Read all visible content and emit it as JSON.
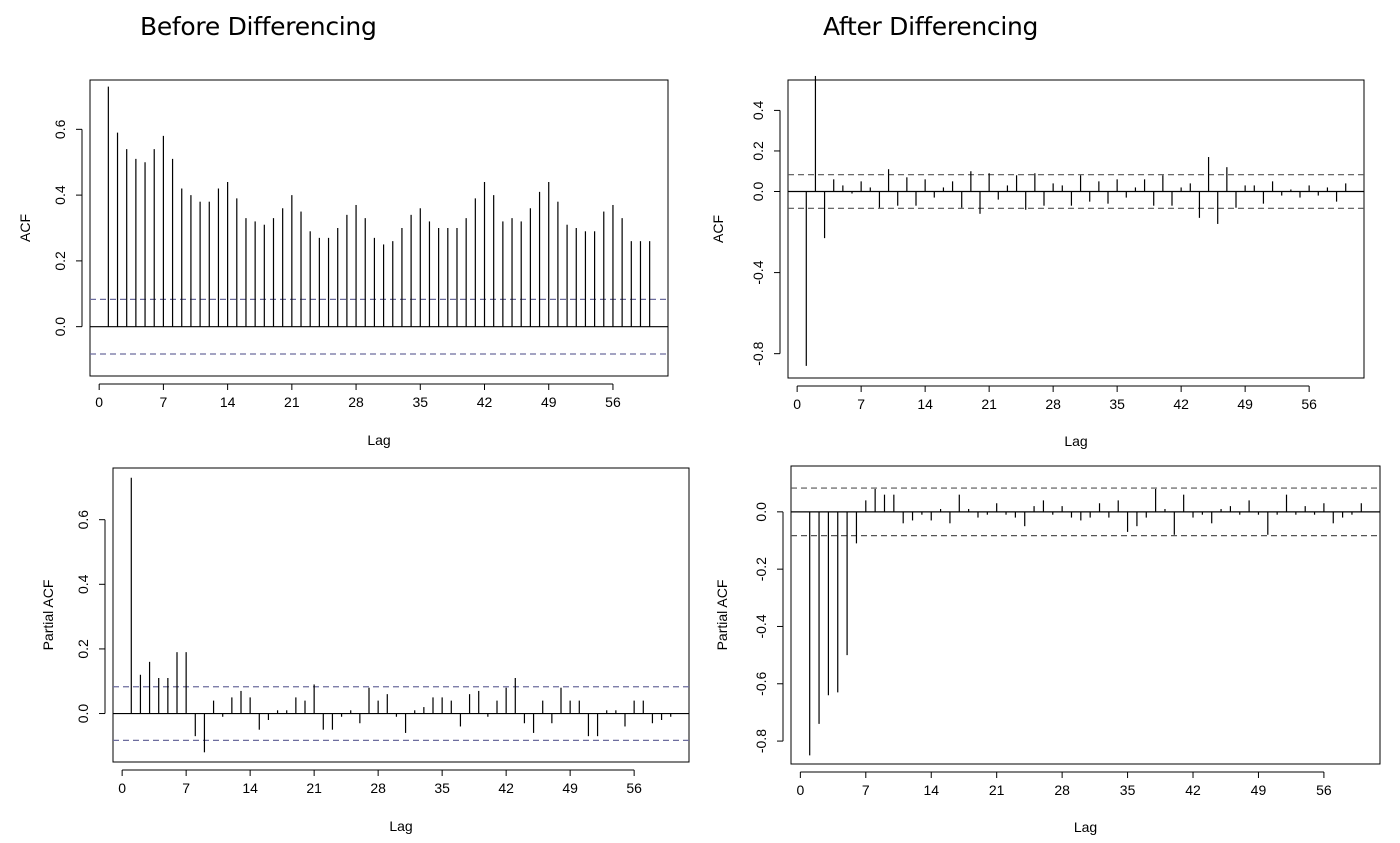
{
  "headings": {
    "left": "Before Differencing",
    "right": "After Differencing"
  },
  "chart_data": [
    {
      "type": "bar",
      "panel": "top-left",
      "xlabel": "Lag",
      "ylabel": "ACF",
      "xlim": [
        -1,
        62
      ],
      "ylim": [
        -0.15,
        0.75
      ],
      "xticks": [
        0,
        7,
        14,
        21,
        28,
        35,
        42,
        49,
        56
      ],
      "yticks": [
        0.0,
        0.2,
        0.4,
        0.6
      ],
      "ytick_labels": [
        "0.0",
        "0.2",
        "0.4",
        "0.6"
      ],
      "zero_line": true,
      "confidence_band": [
        0.083,
        -0.083
      ],
      "band_color": "#6c6c9e",
      "lags": [
        1,
        2,
        3,
        4,
        5,
        6,
        7,
        8,
        9,
        10,
        11,
        12,
        13,
        14,
        15,
        16,
        17,
        18,
        19,
        20,
        21,
        22,
        23,
        24,
        25,
        26,
        27,
        28,
        29,
        30,
        31,
        32,
        33,
        34,
        35,
        36,
        37,
        38,
        39,
        40,
        41,
        42,
        43,
        44,
        45,
        46,
        47,
        48,
        49,
        50,
        51,
        52,
        53,
        54,
        55,
        56,
        57,
        58,
        59,
        60
      ],
      "values": [
        0.73,
        0.59,
        0.54,
        0.51,
        0.5,
        0.54,
        0.58,
        0.51,
        0.42,
        0.4,
        0.38,
        0.38,
        0.42,
        0.44,
        0.39,
        0.33,
        0.32,
        0.31,
        0.33,
        0.36,
        0.4,
        0.35,
        0.29,
        0.27,
        0.27,
        0.3,
        0.34,
        0.37,
        0.33,
        0.27,
        0.25,
        0.26,
        0.3,
        0.34,
        0.36,
        0.32,
        0.3,
        0.3,
        0.3,
        0.33,
        0.39,
        0.44,
        0.4,
        0.32,
        0.33,
        0.32,
        0.36,
        0.41,
        0.44,
        0.38,
        0.31,
        0.3,
        0.29,
        0.29,
        0.35,
        0.37,
        0.33,
        0.26,
        0.26,
        0.26
      ]
    },
    {
      "type": "bar",
      "panel": "top-right",
      "xlabel": "Lag",
      "ylabel": "ACF",
      "xlim": [
        -1,
        62
      ],
      "ylim": [
        -0.92,
        0.55
      ],
      "xticks": [
        0,
        7,
        14,
        21,
        28,
        35,
        42,
        49,
        56
      ],
      "yticks": [
        -0.8,
        -0.4,
        0.0,
        0.2,
        0.4
      ],
      "ytick_labels": [
        "-0.8",
        "-0.4",
        "0.0",
        "0.2",
        "0.4"
      ],
      "zero_line": true,
      "confidence_band": [
        0.083,
        -0.083
      ],
      "band_color": "#555555",
      "lags": [
        1,
        2,
        3,
        4,
        5,
        6,
        7,
        8,
        9,
        10,
        11,
        12,
        13,
        14,
        15,
        16,
        17,
        18,
        19,
        20,
        21,
        22,
        23,
        24,
        25,
        26,
        27,
        28,
        29,
        30,
        31,
        32,
        33,
        34,
        35,
        36,
        37,
        38,
        39,
        40,
        41,
        42,
        43,
        44,
        45,
        46,
        47,
        48,
        49,
        50,
        51,
        52,
        53,
        54,
        55,
        56,
        57,
        58,
        59,
        60
      ],
      "values": [
        -0.86,
        0.57,
        -0.23,
        0.06,
        0.03,
        -0.01,
        0.05,
        0.02,
        -0.08,
        0.11,
        -0.07,
        0.07,
        -0.07,
        0.06,
        -0.03,
        0.02,
        0.05,
        -0.08,
        0.1,
        -0.11,
        0.09,
        -0.04,
        0.03,
        0.08,
        -0.09,
        0.09,
        -0.07,
        0.04,
        0.03,
        -0.07,
        0.08,
        -0.05,
        0.05,
        -0.06,
        0.06,
        -0.03,
        0.02,
        0.06,
        -0.07,
        0.08,
        -0.07,
        0.02,
        0.04,
        -0.13,
        0.17,
        -0.16,
        0.12,
        -0.08,
        0.03,
        0.03,
        -0.06,
        0.05,
        -0.02,
        0.01,
        -0.03,
        0.03,
        -0.02,
        0.02,
        -0.05,
        0.04
      ]
    },
    {
      "type": "bar",
      "panel": "bottom-left",
      "xlabel": "Lag",
      "ylabel": "Partial ACF",
      "xlim": [
        -1,
        62
      ],
      "ylim": [
        -0.15,
        0.76
      ],
      "xticks": [
        0,
        7,
        14,
        21,
        28,
        35,
        42,
        49,
        56
      ],
      "yticks": [
        0.0,
        0.2,
        0.4,
        0.6
      ],
      "ytick_labels": [
        "0.0",
        "0.2",
        "0.4",
        "0.6"
      ],
      "zero_line": true,
      "confidence_band": [
        0.083,
        -0.083
      ],
      "band_color": "#6c6c9e",
      "lags": [
        1,
        2,
        3,
        4,
        5,
        6,
        7,
        8,
        9,
        10,
        11,
        12,
        13,
        14,
        15,
        16,
        17,
        18,
        19,
        20,
        21,
        22,
        23,
        24,
        25,
        26,
        27,
        28,
        29,
        30,
        31,
        32,
        33,
        34,
        35,
        36,
        37,
        38,
        39,
        40,
        41,
        42,
        43,
        44,
        45,
        46,
        47,
        48,
        49,
        50,
        51,
        52,
        53,
        54,
        55,
        56,
        57,
        58,
        59,
        60
      ],
      "values": [
        0.73,
        0.12,
        0.16,
        0.11,
        0.11,
        0.19,
        0.19,
        -0.07,
        -0.12,
        0.04,
        -0.01,
        0.05,
        0.07,
        0.05,
        -0.05,
        -0.02,
        0.01,
        0.01,
        0.05,
        0.04,
        0.09,
        -0.05,
        -0.05,
        -0.01,
        0.01,
        -0.03,
        0.08,
        0.04,
        0.06,
        -0.01,
        -0.06,
        0.01,
        0.02,
        0.05,
        0.05,
        0.04,
        -0.04,
        0.06,
        0.07,
        -0.01,
        0.04,
        0.08,
        0.11,
        -0.03,
        -0.06,
        0.04,
        -0.03,
        0.08,
        0.04,
        0.04,
        -0.07,
        -0.07,
        0.01,
        0.01,
        -0.04,
        0.04,
        0.04,
        -0.03,
        -0.02,
        -0.01
      ]
    },
    {
      "type": "bar",
      "panel": "bottom-right",
      "xlabel": "Lag",
      "ylabel": "Partial ACF",
      "xlim": [
        -1,
        62
      ],
      "ylim": [
        -0.88,
        0.16
      ],
      "xticks": [
        0,
        7,
        14,
        21,
        28,
        35,
        42,
        49,
        56
      ],
      "yticks": [
        -0.8,
        -0.6,
        -0.4,
        -0.2,
        0.0
      ],
      "ytick_labels": [
        "-0.8",
        "-0.6",
        "-0.4",
        "-0.2",
        "0.0"
      ],
      "zero_line": true,
      "confidence_band": [
        0.083,
        -0.083
      ],
      "band_color": "#555555",
      "lags": [
        1,
        2,
        3,
        4,
        5,
        6,
        7,
        8,
        9,
        10,
        11,
        12,
        13,
        14,
        15,
        16,
        17,
        18,
        19,
        20,
        21,
        22,
        23,
        24,
        25,
        26,
        27,
        28,
        29,
        30,
        31,
        32,
        33,
        34,
        35,
        36,
        37,
        38,
        39,
        40,
        41,
        42,
        43,
        44,
        45,
        46,
        47,
        48,
        49,
        50,
        51,
        52,
        53,
        54,
        55,
        56,
        57,
        58,
        59,
        60
      ],
      "values": [
        -0.85,
        -0.74,
        -0.64,
        -0.63,
        -0.5,
        -0.11,
        0.04,
        0.08,
        0.06,
        0.06,
        -0.04,
        -0.03,
        -0.01,
        -0.03,
        0.01,
        -0.04,
        0.06,
        0.01,
        -0.02,
        -0.01,
        0.03,
        -0.01,
        -0.02,
        -0.05,
        0.02,
        0.04,
        -0.01,
        0.02,
        -0.02,
        -0.03,
        -0.02,
        0.03,
        -0.02,
        0.04,
        -0.07,
        -0.05,
        -0.02,
        0.08,
        0.01,
        -0.08,
        0.06,
        -0.02,
        -0.01,
        -0.04,
        0.01,
        0.02,
        -0.01,
        0.04,
        -0.01,
        -0.08,
        -0.01,
        0.06,
        -0.01,
        0.02,
        -0.01,
        0.03,
        -0.04,
        -0.02,
        -0.01,
        0.03
      ]
    }
  ]
}
